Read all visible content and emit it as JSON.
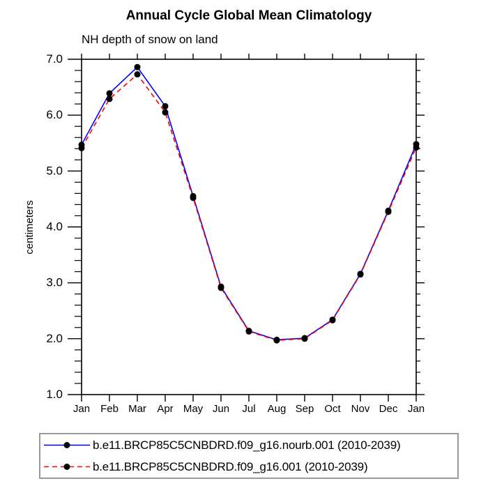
{
  "header": {
    "title": "Annual Cycle Global Mean Climatology",
    "subtitle": "NH depth of snow on land"
  },
  "chart_data": {
    "type": "line",
    "title": "Annual Cycle Global Mean Climatology",
    "subtitle": "NH depth of snow on land",
    "xlabel": "",
    "ylabel": "centimeters",
    "categories": [
      "Jan",
      "Feb",
      "Mar",
      "Apr",
      "May",
      "Jun",
      "Jul",
      "Aug",
      "Sep",
      "Oct",
      "Nov",
      "Dec",
      "Jan"
    ],
    "ylim": [
      1.0,
      7.0
    ],
    "ytick_labels": [
      "1.0",
      "2.0",
      "3.0",
      "4.0",
      "5.0",
      "6.0",
      "7.0"
    ],
    "minor_tick_interval": 0.2,
    "grid": false,
    "legend_position": "bottom-box",
    "marker": {
      "shape": "circle",
      "color": "#000000",
      "radius": 4.5
    },
    "axis_color": "#000000",
    "series": [
      {
        "name": "b.e11.BRCP85C5CNBDRD.f09_g16.nourb.001 (2010-2039)",
        "color": "#0000ff",
        "line_style": "solid",
        "values": [
          5.47,
          6.39,
          6.86,
          6.16,
          4.55,
          2.93,
          2.14,
          1.98,
          2.01,
          2.34,
          3.16,
          4.29,
          5.48
        ]
      },
      {
        "name": "b.e11.BRCP85C5CNBDRD.f09_g16.001 (2010-2039)",
        "color": "#ff0000",
        "line_style": "dashed",
        "values": [
          5.41,
          6.29,
          6.73,
          6.05,
          4.52,
          2.91,
          2.13,
          1.97,
          2.0,
          2.33,
          3.15,
          4.27,
          5.42
        ]
      }
    ]
  }
}
